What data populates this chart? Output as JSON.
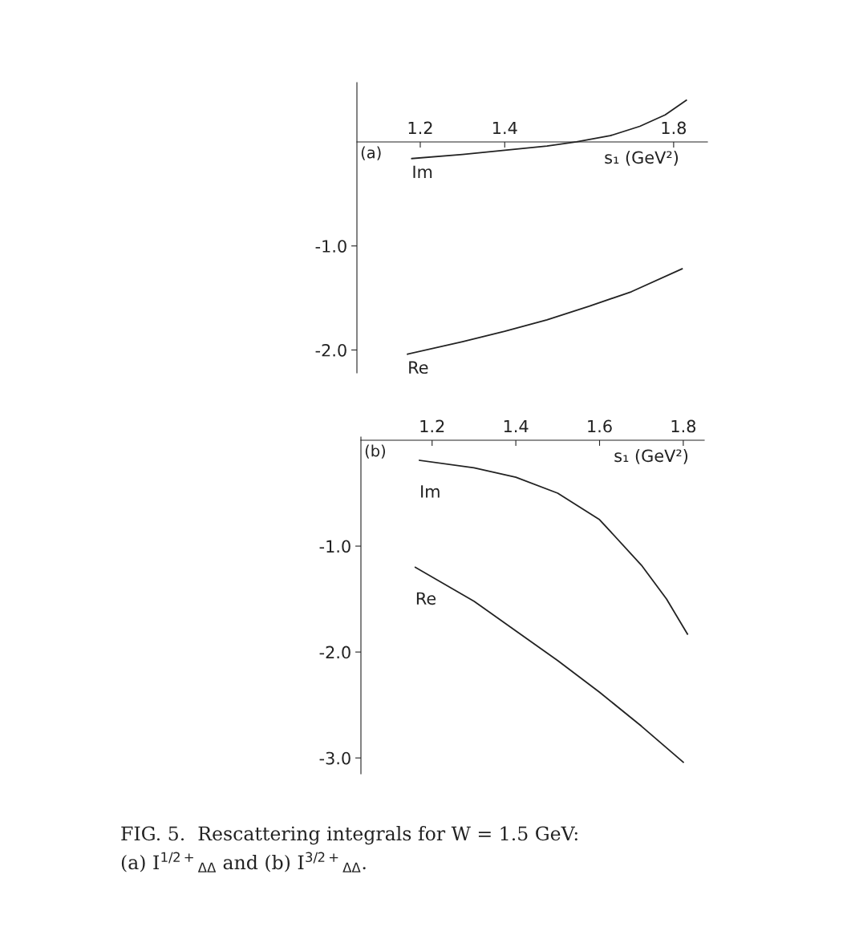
{
  "chart_data": [
    {
      "type": "line",
      "title": "(a)",
      "xlabel": "s₁ (GeV²)",
      "xlim": [
        1.05,
        1.88
      ],
      "ylim": [
        -2.22,
        0.57
      ],
      "xticks": [
        1.2,
        1.4,
        1.8
      ],
      "yticks": [
        {
          "value": -1.0,
          "label": "-1.0"
        },
        {
          "value": -2.0,
          "label": "-2.0"
        }
      ],
      "grid": false,
      "legend": false,
      "series": [
        {
          "name": "Im",
          "color": "#222222",
          "x": [
            1.18,
            1.3,
            1.4,
            1.5,
            1.57,
            1.65,
            1.72,
            1.78,
            1.83
          ],
          "values": [
            -0.16,
            -0.12,
            -0.08,
            -0.04,
            0.0,
            0.06,
            0.15,
            0.26,
            0.4
          ]
        },
        {
          "name": "Re",
          "color": "#222222",
          "x": [
            1.17,
            1.3,
            1.4,
            1.5,
            1.6,
            1.7,
            1.82
          ],
          "values": [
            -2.04,
            -1.92,
            -1.82,
            -1.71,
            -1.58,
            -1.44,
            -1.22
          ]
        }
      ]
    },
    {
      "type": "line",
      "title": "(b)",
      "xlabel": "s₁ (GeV²)",
      "xlim": [
        1.03,
        1.85
      ],
      "ylim": [
        -3.15,
        0.03
      ],
      "xticks": [
        1.2,
        1.4,
        1.6,
        1.8
      ],
      "yticks": [
        {
          "value": -1.0,
          "label": "-1.0"
        },
        {
          "value": -2.0,
          "label": "-2.0"
        },
        {
          "value": -3.0,
          "label": "-3.0"
        }
      ],
      "grid": false,
      "legend": false,
      "annotations": [
        "FIG. 5.  Rescattering integrals for W = 1.5 GeV:\n(a) I$^{1/2+}$$_{ΔΔ}$ and (b) I$^{3/2+}$$_{ΔΔ}$."
      ],
      "series": [
        {
          "name": "Im",
          "color": "#222222",
          "x": [
            1.17,
            1.3,
            1.4,
            1.5,
            1.6,
            1.7,
            1.76,
            1.81
          ],
          "values": [
            -0.19,
            -0.26,
            -0.35,
            -0.5,
            -0.75,
            -1.18,
            -1.5,
            -1.83
          ]
        },
        {
          "name": "Re",
          "color": "#222222",
          "x": [
            1.16,
            1.3,
            1.4,
            1.5,
            1.6,
            1.7,
            1.8
          ],
          "values": [
            -1.2,
            -1.52,
            -1.8,
            -2.08,
            -2.38,
            -2.7,
            -3.04
          ]
        }
      ]
    }
  ]
}
